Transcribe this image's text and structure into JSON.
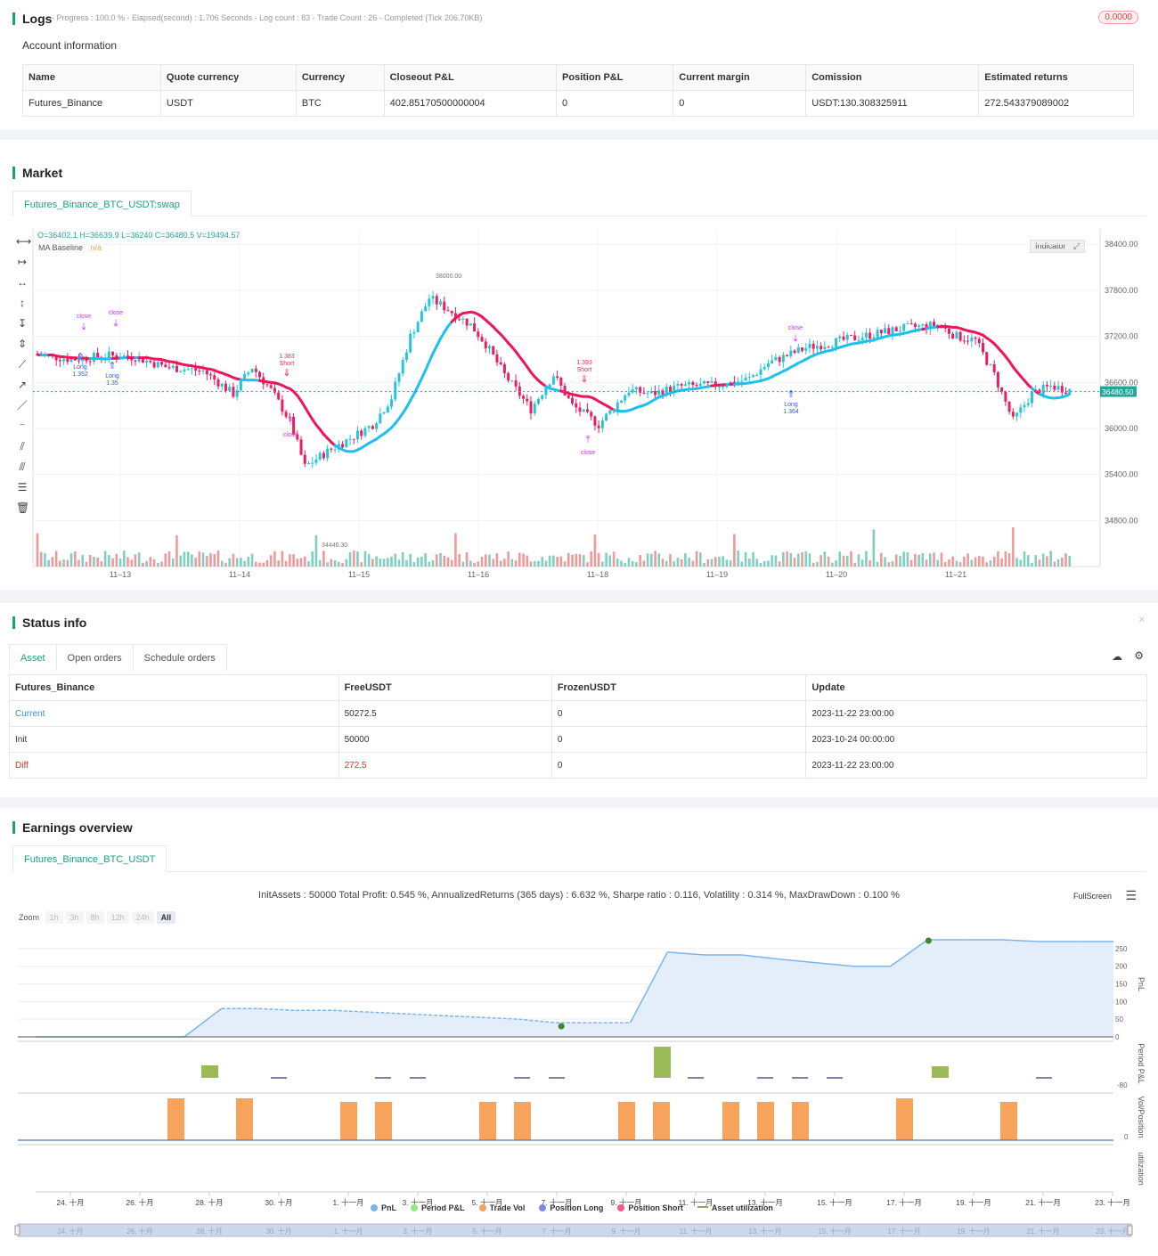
{
  "logs": {
    "title": "Logs",
    "progress": "- Progress : 100.0 % - Elapsed(second) : 1.706  Seconds - Log count : 83 - Trade Count : 26 - Completed (Tick 206.70KB)",
    "badge": "0.0000",
    "account_title": "Account information",
    "columns": [
      "Name",
      "Quote currency",
      "Currency",
      "Closeout P&L",
      "Position P&L",
      "Current margin",
      "Comission",
      "Estimated returns"
    ],
    "row": [
      "Futures_Binance",
      "USDT",
      "BTC",
      "402.85170500000004",
      "0",
      "0",
      "USDT:130.308325911",
      "272.543379089002"
    ]
  },
  "market": {
    "title": "Market",
    "tab": "Futures_Binance_BTC_USDT:swap",
    "ohlc": "O=36402.1 H=36639.9 L=36240 C=36480.5 V=19494.57",
    "ma_label": "MA Baseline",
    "ma_value": "n/a",
    "indicator_btn": "Indicator",
    "price_ticks": [
      "38400.00",
      "37800.00",
      "37200.00",
      "36600.00",
      "36000.00",
      "35400.00",
      "34800.00"
    ],
    "price_range": [
      34200,
      38600
    ],
    "current_price": "36480.50",
    "x_ticks": [
      "11–13",
      "11–14",
      "11–15",
      "11–16",
      "11–18",
      "11–19",
      "11–20",
      "11–21"
    ],
    "annotations": {
      "high": "38000.00",
      "low": "34446.30",
      "close": "close",
      "long": "Long",
      "short": "Short",
      "long_vals": [
        "1.352",
        "1.35",
        "1.364"
      ],
      "short_vals": [
        "1.383",
        "1.393"
      ]
    },
    "colors": {
      "up": "#26c6da",
      "down": "#e91e63",
      "neutral": "#787b86",
      "ma_up": "#1ec0f0",
      "ma_down": "#f0145a",
      "vol_up": "#7fd0c0",
      "vol_down": "#ef9a9a",
      "signal": "#cc33ff",
      "long": "#3355ff"
    }
  },
  "status": {
    "title": "Status info",
    "tabs": [
      "Asset",
      "Open orders",
      "Schedule orders"
    ],
    "columns": [
      "Futures_Binance",
      "FreeUSDT",
      "FrozenUSDT",
      "Update"
    ],
    "rows": [
      [
        "Current",
        "50272.5",
        "0",
        "2023-11-22 23:00:00"
      ],
      [
        "Init",
        "50000",
        "0",
        "2023-10-24 00:00:00"
      ],
      [
        "Diff",
        "272.5",
        "0",
        "2023-11-22 23:00:00"
      ]
    ]
  },
  "earnings": {
    "title": "Earnings overview",
    "tab": "Futures_Binance_BTC_USDT",
    "summary": "InitAssets : 50000 Total Profit: 0.545 %, AnnualizedReturns (365 days) : 6.632 %, Sharpe ratio : 0.116, Volatility : 0.314 %, MaxDrawDown : 0.100 %",
    "fullscreen": "FullScreen",
    "zoom_label": "Zoom",
    "zoom_options": [
      "1h",
      "3h",
      "8h",
      "12h",
      "24h",
      "All"
    ],
    "pnl_ticks": [
      "250",
      "200",
      "150",
      "100",
      "50",
      "0"
    ],
    "period_tick": "-80",
    "vol_tick": "0",
    "axis_labels": [
      "PnL",
      "Period P&L",
      "Vol/Position",
      "utilization"
    ],
    "x_ticks": [
      "24. 十月",
      "26. 十月",
      "28. 十月",
      "30. 十月",
      "1. 十一月",
      "3. 十一月",
      "5. 十一月",
      "7. 十一月",
      "9. 十一月",
      "11. 十一月",
      "13. 十一月",
      "15. 十一月",
      "17. 十一月",
      "19. 十一月",
      "21. 十一月",
      "23. 十一月"
    ],
    "legend": [
      {
        "label": "PnL",
        "color": "#7cb5ec"
      },
      {
        "label": "Period P&L",
        "color": "#90ed7d"
      },
      {
        "label": "Trade Vol",
        "color": "#f7a35c"
      },
      {
        "label": "Position Long",
        "color": "#8085e9"
      },
      {
        "label": "Position Short",
        "color": "#f15c80"
      },
      {
        "label": "Asset utilization",
        "color": "#a0a060"
      }
    ],
    "pnl_series": [
      0,
      0,
      0,
      0,
      0,
      80,
      80,
      75,
      75,
      70,
      65,
      60,
      55,
      50,
      40,
      40,
      40,
      240,
      232,
      232,
      220,
      210,
      200,
      200,
      275,
      275,
      275,
      270,
      270,
      270
    ],
    "trade_vol_positions": [
      4.3,
      5.3,
      6.8,
      7.3,
      9.8,
      10.3,
      11.8,
      12.3,
      13.8,
      14.3,
      14.8,
      16.3,
      17.8
    ]
  }
}
